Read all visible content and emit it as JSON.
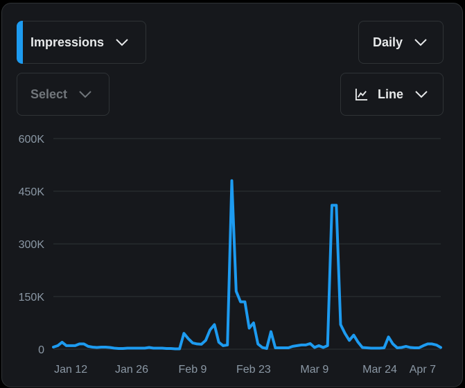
{
  "controls": {
    "metric_label": "Impressions",
    "secondary_placeholder": "Select",
    "period_label": "Daily",
    "chart_type_label": "Line"
  },
  "icons": [
    "chevron-down-icon",
    "line-chart-icon"
  ],
  "colors": {
    "accent": "#1d9bf0",
    "background": "#16181c",
    "border": "#2f3336",
    "grid": "#2f3336"
  },
  "chart_data": {
    "type": "line",
    "title": "",
    "xlabel": "",
    "ylabel": "",
    "ylim": [
      0,
      600000
    ],
    "yticks": [
      0,
      150000,
      300000,
      450000,
      600000
    ],
    "ytick_labels": [
      "0",
      "150K",
      "300K",
      "450K",
      "600K"
    ],
    "xticks": [
      "Jan 12",
      "Jan 26",
      "Feb 9",
      "Feb 23",
      "Mar 9",
      "Mar 24",
      "Apr 7"
    ],
    "xlim": [
      "Jan 8",
      "Apr 7"
    ],
    "grid": true,
    "legend": "none",
    "series": [
      {
        "color": "#1d9bf0",
        "x": [
          "Jan 8",
          "Jan 9",
          "Jan 10",
          "Jan 11",
          "Jan 12",
          "Jan 13",
          "Jan 14",
          "Jan 15",
          "Jan 16",
          "Jan 17",
          "Jan 18",
          "Jan 19",
          "Jan 20",
          "Jan 21",
          "Jan 22",
          "Jan 23",
          "Jan 24",
          "Jan 25",
          "Jan 26",
          "Jan 27",
          "Jan 28",
          "Jan 29",
          "Jan 30",
          "Jan 31",
          "Feb 1",
          "Feb 2",
          "Feb 3",
          "Feb 4",
          "Feb 5",
          "Feb 6",
          "Feb 7",
          "Feb 8",
          "Feb 9",
          "Feb 10",
          "Feb 11",
          "Feb 12",
          "Feb 13",
          "Feb 14",
          "Feb 15",
          "Feb 16",
          "Feb 17",
          "Feb 18",
          "Feb 19",
          "Feb 20",
          "Feb 21",
          "Feb 22",
          "Feb 23",
          "Feb 24",
          "Feb 25",
          "Feb 26",
          "Feb 27",
          "Feb 28",
          "Mar 1",
          "Mar 2",
          "Mar 3",
          "Mar 4",
          "Mar 5",
          "Mar 6",
          "Mar 7",
          "Mar 8",
          "Mar 9",
          "Mar 10",
          "Mar 11",
          "Mar 12",
          "Mar 13",
          "Mar 14",
          "Mar 15",
          "Mar 16",
          "Mar 17",
          "Mar 18",
          "Mar 19",
          "Mar 20",
          "Mar 21",
          "Mar 22",
          "Mar 23",
          "Mar 24",
          "Mar 25",
          "Mar 26",
          "Mar 27",
          "Mar 28",
          "Mar 29",
          "Mar 30",
          "Mar 31",
          "Apr 1",
          "Apr 2",
          "Apr 3",
          "Apr 4",
          "Apr 5",
          "Apr 6",
          "Apr 7"
        ],
        "values": [
          6000,
          10000,
          20000,
          10000,
          10000,
          10000,
          15000,
          15000,
          8000,
          6000,
          5000,
          6000,
          6000,
          5000,
          3000,
          2000,
          2000,
          3000,
          3000,
          3000,
          3000,
          3000,
          5000,
          3000,
          3000,
          3000,
          2000,
          2000,
          1000,
          1000,
          45000,
          30000,
          18000,
          15000,
          14000,
          25000,
          55000,
          70000,
          20000,
          10000,
          12000,
          480000,
          165000,
          135000,
          135000,
          60000,
          75000,
          15000,
          5000,
          2000,
          50000,
          4000,
          4000,
          4000,
          4000,
          8000,
          10000,
          12000,
          12000,
          16000,
          5000,
          10000,
          5000,
          10000,
          410000,
          410000,
          70000,
          45000,
          25000,
          40000,
          20000,
          5000,
          4000,
          3000,
          3000,
          3000,
          4000,
          35000,
          15000,
          4000,
          5000,
          8000,
          5000,
          4000,
          4000,
          10000,
          15000,
          15000,
          12000,
          5000
        ]
      }
    ]
  }
}
